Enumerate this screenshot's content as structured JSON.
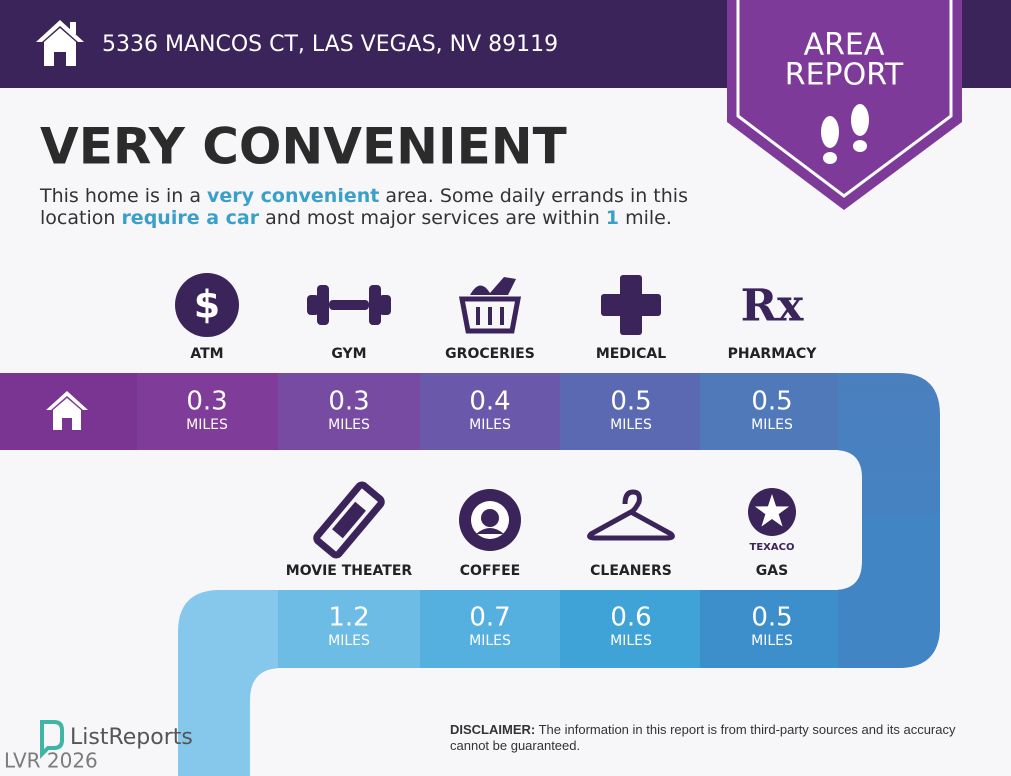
{
  "header": {
    "address": "5336 MANCOS CT, LAS VEGAS, NV 89119"
  },
  "badge": {
    "lines": [
      "AREA",
      "REPORT"
    ]
  },
  "headline": "VERY CONVENIENT",
  "description": [
    {
      "text": "This home is in a ",
      "highlight": false
    },
    {
      "text": "very convenient",
      "highlight": true
    },
    {
      "text": " area. Some daily errands in this",
      "highlight": false
    },
    {
      "text": "location ",
      "highlight": false
    },
    {
      "text": "require a car",
      "highlight": true
    },
    {
      "text": " and most major services are within ",
      "highlight": false
    },
    {
      "text": "1",
      "highlight": true
    },
    {
      "text": " mile.",
      "highlight": false
    }
  ],
  "amenities": [
    [
      {
        "label": "ATM",
        "distance": 0.3,
        "unit": "MILES",
        "icon_text": "$"
      },
      {
        "label": "GYM",
        "distance": 0.3,
        "unit": "MILES"
      },
      {
        "label": "GROCERIES",
        "distance": 0.4,
        "unit": "MILES"
      },
      {
        "label": "MEDICAL",
        "distance": 0.5,
        "unit": "MILES"
      },
      {
        "label": "PHARMACY",
        "distance": 0.5,
        "unit": "MILES",
        "icon_text": "Rx"
      }
    ],
    [
      {
        "label": "MOVIE THEATER",
        "distance": 1.2,
        "unit": "MILES"
      },
      {
        "label": "COFFEE",
        "distance": 0.7,
        "unit": "MILES"
      },
      {
        "label": "CLEANERS",
        "distance": 0.6,
        "unit": "MILES"
      },
      {
        "label": "GAS",
        "distance": 0.5,
        "unit": "MILES",
        "icon_text": "TEXACO"
      }
    ]
  ],
  "footer": {
    "brand": "ListReports",
    "disclaimer_label": "DISCLAIMER:",
    "disclaimer_text": " The information in this report is from third-party sources and its accuracy cannot be guaranteed."
  },
  "watermark": "LVR 2026"
}
